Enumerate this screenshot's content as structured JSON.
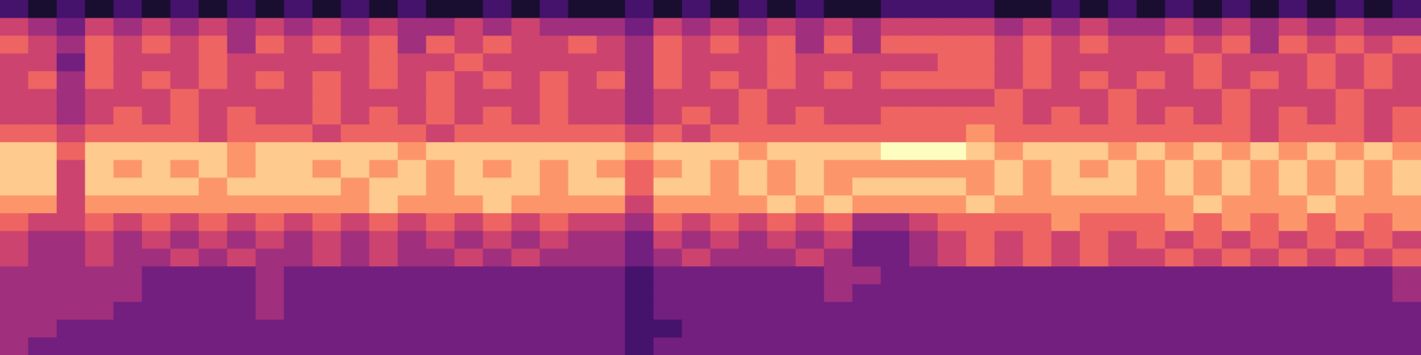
{
  "chart_data": {
    "type": "heatmap",
    "color": "magma",
    "tick_labels": false,
    "grid": false,
    "color_range": [
      0,
      9
    ],
    "cells": [
      [
        4,
        3,
        3,
        3,
        3,
        3,
        3,
        3,
        3,
        3,
        3,
        3,
        3,
        3,
        3,
        3,
        3,
        3,
        3,
        3,
        3,
        3,
        2,
        3,
        3,
        3,
        3,
        3,
        3,
        3,
        3,
        3,
        3,
        3,
        3,
        3,
        3,
        3,
        3,
        3,
        3,
        3,
        3,
        3,
        3,
        3,
        3,
        3,
        3,
        3
      ],
      [
        4,
        4,
        3,
        3,
        3,
        3,
        3,
        3,
        3,
        3,
        3,
        3,
        3,
        3,
        3,
        3,
        3,
        3,
        3,
        3,
        3,
        3,
        2,
        2,
        3,
        3,
        3,
        3,
        3,
        3,
        3,
        3,
        3,
        3,
        3,
        3,
        3,
        3,
        3,
        3,
        3,
        3,
        3,
        3,
        3,
        3,
        3,
        3,
        3,
        3
      ],
      [
        4,
        4,
        4,
        4,
        3,
        3,
        3,
        3,
        3,
        4,
        3,
        3,
        3,
        3,
        3,
        3,
        3,
        3,
        3,
        3,
        3,
        3,
        2,
        3,
        3,
        3,
        3,
        3,
        3,
        3,
        3,
        3,
        3,
        3,
        3,
        3,
        3,
        3,
        3,
        3,
        3,
        3,
        3,
        3,
        3,
        3,
        3,
        3,
        3,
        3
      ],
      [
        4,
        4,
        4,
        4,
        4,
        3,
        3,
        3,
        3,
        4,
        3,
        3,
        3,
        3,
        3,
        3,
        3,
        3,
        3,
        3,
        3,
        3,
        2,
        3,
        3,
        3,
        3,
        3,
        3,
        4,
        3,
        3,
        3,
        3,
        3,
        3,
        3,
        3,
        3,
        3,
        3,
        3,
        3,
        3,
        3,
        3,
        3,
        3,
        3,
        4
      ],
      [
        4,
        4,
        4,
        4,
        4,
        3,
        3,
        3,
        3,
        4,
        3,
        3,
        3,
        3,
        3,
        3,
        3,
        3,
        3,
        3,
        3,
        3,
        2,
        3,
        3,
        3,
        3,
        3,
        3,
        4,
        4,
        3,
        3,
        3,
        3,
        3,
        3,
        3,
        3,
        3,
        3,
        3,
        3,
        3,
        3,
        3,
        3,
        3,
        3,
        4
      ],
      [
        5,
        4,
        4,
        5,
        4,
        4,
        5,
        4,
        5,
        4,
        4,
        5,
        4,
        5,
        4,
        4,
        5,
        4,
        5,
        4,
        4,
        4,
        3,
        4,
        5,
        4,
        4,
        4,
        5,
        4,
        3,
        3,
        4,
        5,
        6,
        5,
        6,
        5,
        6,
        5,
        5,
        6,
        5,
        6,
        5,
        6,
        5,
        6,
        5,
        6
      ],
      [
        5,
        4,
        4,
        5,
        4,
        5,
        4,
        5,
        4,
        5,
        4,
        5,
        4,
        5,
        4,
        5,
        4,
        5,
        4,
        5,
        4,
        4,
        3,
        5,
        4,
        5,
        4,
        5,
        4,
        5,
        3,
        3,
        4,
        5,
        6,
        5,
        6,
        5,
        6,
        5,
        6,
        5,
        6,
        5,
        6,
        5,
        6,
        5,
        6,
        5
      ],
      [
        6,
        5,
        5,
        6,
        5,
        6,
        5,
        6,
        5,
        6,
        5,
        6,
        5,
        6,
        5,
        6,
        5,
        6,
        5,
        6,
        5,
        5,
        4,
        6,
        5,
        6,
        5,
        6,
        5,
        6,
        4,
        4,
        5,
        6,
        6,
        6,
        6,
        7,
        6,
        6,
        6,
        7,
        6,
        7,
        6,
        7,
        6,
        7,
        6,
        7
      ],
      [
        7,
        7,
        5,
        7,
        7,
        7,
        7,
        7,
        7,
        7,
        7,
        7,
        7,
        8,
        7,
        7,
        7,
        8,
        7,
        7,
        7,
        7,
        5,
        7,
        7,
        7,
        7,
        8,
        7,
        8,
        7,
        7,
        7,
        7,
        8,
        7,
        7,
        7,
        7,
        7,
        7,
        7,
        8,
        7,
        7,
        7,
        8,
        7,
        7,
        7
      ],
      [
        8,
        8,
        5,
        8,
        8,
        8,
        8,
        7,
        8,
        8,
        8,
        8,
        7,
        8,
        8,
        7,
        8,
        8,
        8,
        7,
        8,
        8,
        6,
        8,
        8,
        7,
        8,
        7,
        8,
        7,
        8,
        8,
        8,
        8,
        7,
        8,
        7,
        8,
        8,
        8,
        7,
        8,
        7,
        8,
        7,
        8,
        7,
        8,
        7,
        8
      ],
      [
        8,
        8,
        5,
        8,
        7,
        8,
        7,
        8,
        7,
        8,
        8,
        7,
        8,
        7,
        8,
        7,
        8,
        7,
        8,
        7,
        8,
        7,
        6,
        7,
        8,
        7,
        8,
        7,
        8,
        7,
        7,
        7,
        7,
        7,
        7,
        8,
        7,
        8,
        7,
        8,
        7,
        8,
        7,
        8,
        7,
        8,
        7,
        8,
        7,
        8
      ],
      [
        8,
        8,
        6,
        8,
        8,
        8,
        8,
        8,
        7,
        8,
        8,
        8,
        8,
        8,
        7,
        8,
        8,
        8,
        8,
        8,
        8,
        8,
        7,
        8,
        8,
        8,
        7,
        8,
        8,
        8,
        8,
        9,
        9,
        9,
        8,
        7,
        8,
        8,
        8,
        7,
        8,
        7,
        8,
        7,
        8,
        7,
        8,
        7,
        8,
        7
      ],
      [
        6,
        6,
        5,
        6,
        6,
        6,
        6,
        5,
        6,
        6,
        6,
        5,
        6,
        6,
        6,
        5,
        6,
        6,
        6,
        6,
        6,
        6,
        5,
        6,
        5,
        6,
        6,
        6,
        6,
        6,
        6,
        6,
        6,
        6,
        7,
        6,
        6,
        6,
        6,
        6,
        6,
        6,
        6,
        6,
        5,
        6,
        6,
        6,
        5,
        6
      ],
      [
        5,
        5,
        4,
        5,
        6,
        5,
        6,
        5,
        6,
        5,
        5,
        6,
        5,
        6,
        5,
        6,
        5,
        6,
        5,
        6,
        5,
        5,
        4,
        5,
        6,
        5,
        6,
        5,
        6,
        5,
        5,
        6,
        6,
        6,
        6,
        6,
        5,
        6,
        5,
        6,
        5,
        6,
        5,
        6,
        5,
        6,
        5,
        6,
        5,
        6
      ],
      [
        5,
        5,
        4,
        5,
        5,
        5,
        6,
        5,
        5,
        5,
        5,
        6,
        5,
        5,
        5,
        6,
        5,
        5,
        5,
        6,
        5,
        5,
        4,
        5,
        5,
        5,
        6,
        5,
        5,
        5,
        5,
        5,
        5,
        5,
        5,
        6,
        5,
        5,
        5,
        6,
        5,
        5,
        5,
        6,
        5,
        5,
        5,
        6,
        5,
        5
      ],
      [
        5,
        6,
        4,
        6,
        5,
        6,
        5,
        6,
        5,
        6,
        5,
        6,
        5,
        6,
        5,
        6,
        5,
        6,
        5,
        6,
        5,
        6,
        4,
        6,
        5,
        6,
        5,
        6,
        5,
        6,
        5,
        6,
        6,
        6,
        6,
        5,
        6,
        5,
        6,
        5,
        6,
        5,
        6,
        5,
        6,
        5,
        6,
        5,
        6,
        5
      ],
      [
        5,
        5,
        3,
        6,
        5,
        5,
        5,
        6,
        5,
        5,
        5,
        5,
        5,
        6,
        5,
        5,
        6,
        5,
        5,
        5,
        5,
        5,
        4,
        6,
        5,
        5,
        5,
        6,
        5,
        5,
        5,
        5,
        5,
        6,
        6,
        5,
        6,
        5,
        5,
        5,
        5,
        5,
        6,
        5,
        5,
        5,
        6,
        5,
        6,
        5
      ],
      [
        6,
        5,
        4,
        6,
        5,
        6,
        5,
        6,
        4,
        6,
        5,
        6,
        5,
        6,
        4,
        6,
        5,
        6,
        5,
        5,
        6,
        5,
        4,
        6,
        5,
        6,
        5,
        6,
        4,
        6,
        4,
        6,
        6,
        6,
        6,
        5,
        6,
        5,
        6,
        5,
        5,
        6,
        5,
        6,
        4,
        6,
        5,
        6,
        5,
        6
      ],
      [
        5,
        4,
        3,
        5,
        4,
        5,
        4,
        5,
        4,
        5,
        4,
        5,
        4,
        5,
        4,
        4,
        5,
        4,
        5,
        4,
        4,
        4,
        3,
        5,
        4,
        5,
        4,
        5,
        4,
        5,
        4,
        5,
        5,
        5,
        5,
        4,
        5,
        4,
        5,
        4,
        4,
        5,
        4,
        5,
        4,
        5,
        4,
        5,
        4,
        4
      ],
      [
        2,
        1,
        2,
        1,
        2,
        1,
        2,
        1,
        2,
        1,
        2,
        1,
        2,
        1,
        2,
        1,
        1,
        2,
        1,
        2,
        1,
        1,
        2,
        1,
        2,
        1,
        2,
        1,
        2,
        1,
        1,
        2,
        2,
        2,
        2,
        1,
        1,
        2,
        1,
        2,
        1,
        2,
        1,
        2,
        1,
        2,
        1,
        2,
        1,
        2
      ]
    ]
  }
}
